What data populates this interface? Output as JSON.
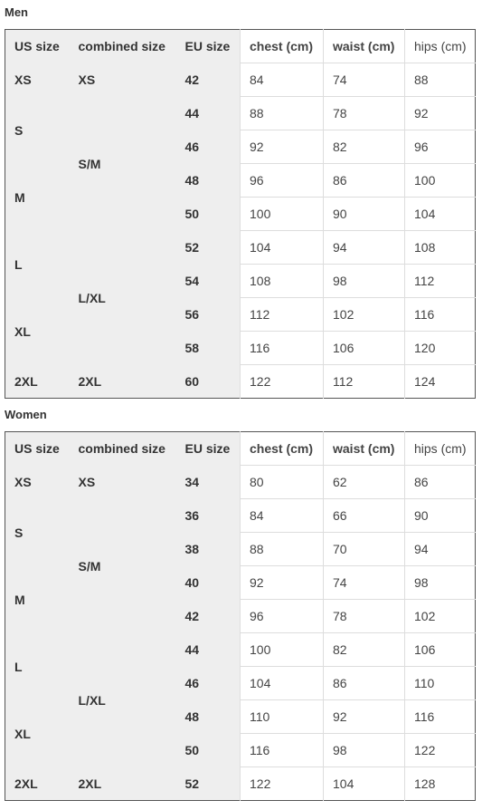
{
  "tables": [
    {
      "title": "Men",
      "headers": [
        "US size",
        "combined size",
        "EU size",
        "chest (cm)",
        "waist (cm)",
        "hips (cm)"
      ],
      "us_sizes": [
        "XS",
        "S",
        "M",
        "L",
        "XL",
        "2XL"
      ],
      "combined_sizes": [
        "XS",
        "S/M",
        "L/XL",
        "2XL"
      ],
      "rows": [
        {
          "eu": "42",
          "chest": "84",
          "waist": "74",
          "hips": "88"
        },
        {
          "eu": "44",
          "chest": "88",
          "waist": "78",
          "hips": "92"
        },
        {
          "eu": "46",
          "chest": "92",
          "waist": "82",
          "hips": "96"
        },
        {
          "eu": "48",
          "chest": "96",
          "waist": "86",
          "hips": "100"
        },
        {
          "eu": "50",
          "chest": "100",
          "waist": "90",
          "hips": "104"
        },
        {
          "eu": "52",
          "chest": "104",
          "waist": "94",
          "hips": "108"
        },
        {
          "eu": "54",
          "chest": "108",
          "waist": "98",
          "hips": "112"
        },
        {
          "eu": "56",
          "chest": "112",
          "waist": "102",
          "hips": "116"
        },
        {
          "eu": "58",
          "chest": "116",
          "waist": "106",
          "hips": "120"
        },
        {
          "eu": "60",
          "chest": "122",
          "waist": "112",
          "hips": "124"
        }
      ]
    },
    {
      "title": "Women",
      "headers": [
        "US size",
        "combined size",
        "EU size",
        "chest (cm)",
        "waist (cm)",
        "hips (cm)"
      ],
      "us_sizes": [
        "XS",
        "S",
        "M",
        "L",
        "XL",
        "2XL"
      ],
      "combined_sizes": [
        "XS",
        "S/M",
        "L/XL",
        "2XL"
      ],
      "rows": [
        {
          "eu": "34",
          "chest": "80",
          "waist": "62",
          "hips": "86"
        },
        {
          "eu": "36",
          "chest": "84",
          "waist": "66",
          "hips": "90"
        },
        {
          "eu": "38",
          "chest": "88",
          "waist": "70",
          "hips": "94"
        },
        {
          "eu": "40",
          "chest": "92",
          "waist": "74",
          "hips": "98"
        },
        {
          "eu": "42",
          "chest": "96",
          "waist": "78",
          "hips": "102"
        },
        {
          "eu": "44",
          "chest": "100",
          "waist": "82",
          "hips": "106"
        },
        {
          "eu": "46",
          "chest": "104",
          "waist": "86",
          "hips": "110"
        },
        {
          "eu": "48",
          "chest": "110",
          "waist": "92",
          "hips": "116"
        },
        {
          "eu": "50",
          "chest": "116",
          "waist": "98",
          "hips": "122"
        },
        {
          "eu": "52",
          "chest": "122",
          "waist": "104",
          "hips": "128"
        }
      ]
    }
  ]
}
